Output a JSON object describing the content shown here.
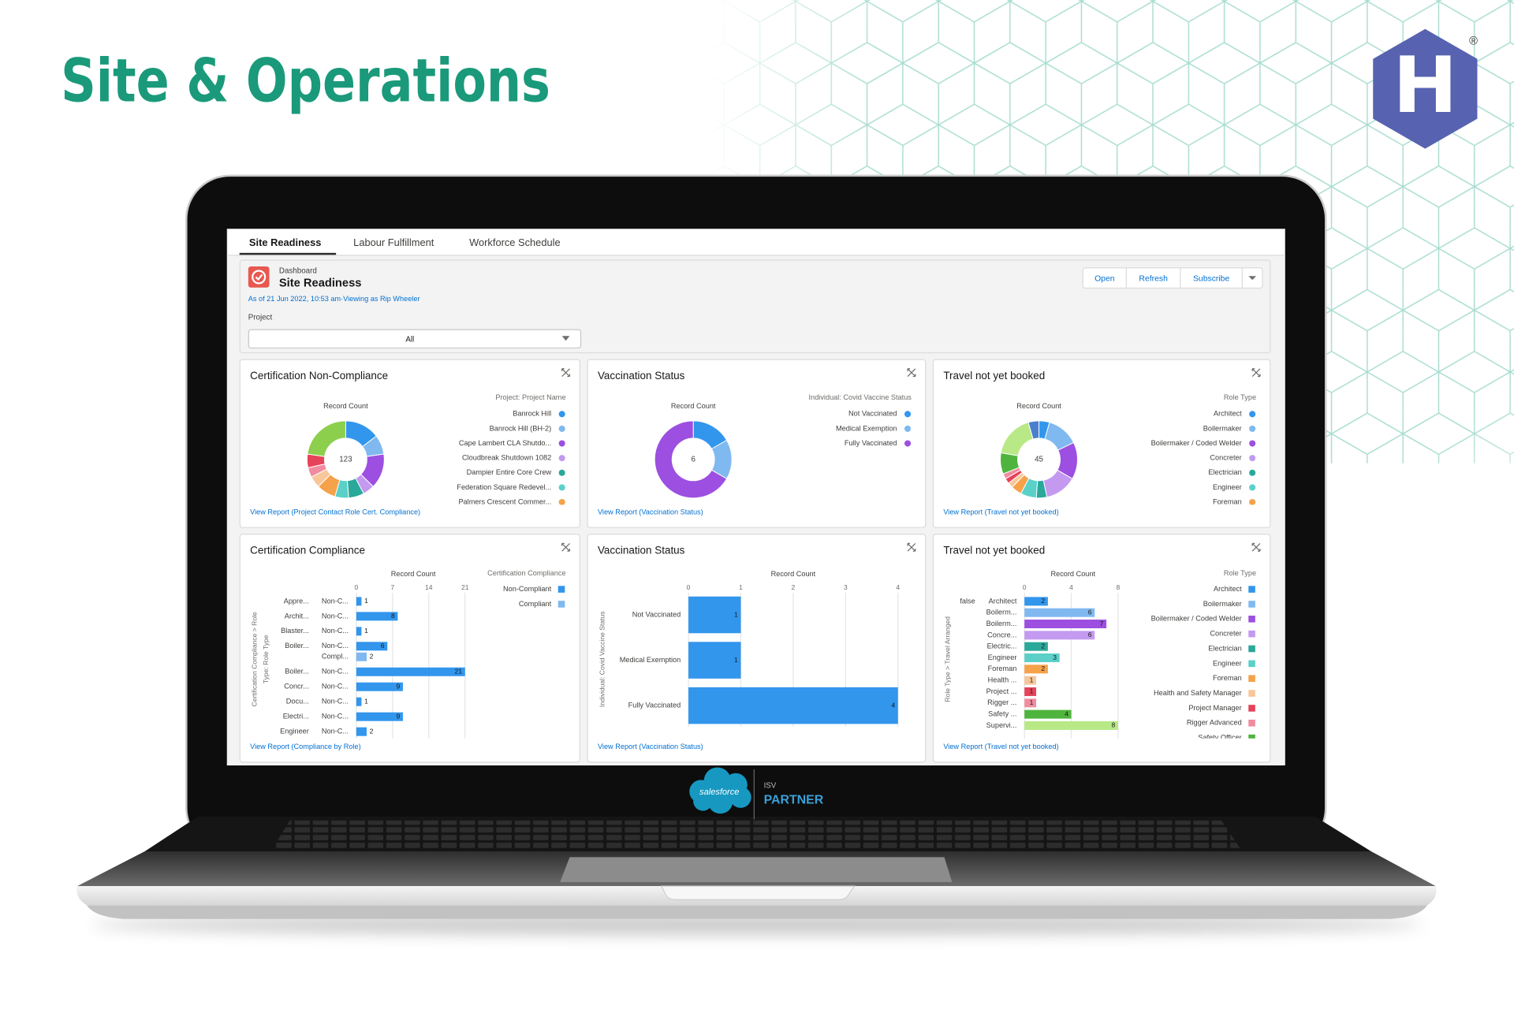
{
  "header": {
    "title": "Site & Operations"
  },
  "logo": {
    "letter": "H",
    "registered": "®"
  },
  "tabs": [
    "Site Readiness",
    "Labour Fulfillment",
    "Workforce Schedule"
  ],
  "dashboard": {
    "label": "Dashboard",
    "title": "Site Readiness",
    "as_of": "As of 21 Jun 2022, 10:53 am·Viewing as Rip Wheeler",
    "buttons": [
      "Open",
      "Refresh",
      "Subscribe"
    ],
    "filter": {
      "label": "Project",
      "value": "All"
    }
  },
  "chart_data": [
    {
      "type": "donut",
      "title": "Certification Non-Compliance",
      "measure_label": "Record Count",
      "total": 123,
      "legend_title": "Project: Project Name",
      "categories": [
        "Banrock Hill",
        "Banrock Hill (BH-2)",
        "Cape Lambert CLA Shutdo...",
        "Cloudbreak Shutdown 1082",
        "Dampier Entire Core Crew",
        "Federation Square Redevel...",
        "Palmers Crescent Commer...",
        null,
        null,
        null,
        null
      ],
      "values": [
        18,
        10,
        18,
        6,
        8,
        7,
        10,
        6,
        5,
        7,
        28
      ],
      "colors": [
        "#3296ed",
        "#7fb9f0",
        "#9c4fe0",
        "#c39af0",
        "#2aa89a",
        "#5ad0c8",
        "#f5a24a",
        "#f7c79a",
        "#f18ca0",
        "#e6435a",
        "#8ccf4d"
      ],
      "link": "View Report (Project Contact Role Cert. Compliance)"
    },
    {
      "type": "donut",
      "title": "Vaccination Status",
      "measure_label": "Record Count",
      "total": 6,
      "legend_title": "Individual: Covid Vaccine Status",
      "categories": [
        "Not Vaccinated",
        "Medical Exemption",
        "Fully Vaccinated"
      ],
      "values": [
        1,
        1,
        4
      ],
      "colors": [
        "#3296ed",
        "#7fb9f0",
        "#9c4fe0"
      ],
      "link": "View Report (Vaccination Status)"
    },
    {
      "type": "donut",
      "title": "Travel not yet booked",
      "measure_label": "Record Count",
      "total": 45,
      "legend_title": "Role Type",
      "categories": [
        "Architect",
        "Boilermaker",
        "Boilermaker / Coded Welder",
        "Concreter",
        "Electrician",
        "Engineer",
        "Foreman",
        null,
        null,
        null,
        null,
        null,
        null
      ],
      "values": [
        2,
        6,
        7,
        6,
        2,
        3,
        2,
        1,
        1,
        1,
        4,
        8,
        2
      ],
      "colors": [
        "#3296ed",
        "#7fb9f0",
        "#9c4fe0",
        "#c39af0",
        "#2aa89a",
        "#5ad0c8",
        "#f5a24a",
        "#f7c79a",
        "#e6435a",
        "#f18ca0",
        "#4fb43d",
        "#b8e986",
        "#4a7fd0"
      ],
      "link": "View Report (Travel not yet booked)"
    },
    {
      "type": "hbar",
      "title": "Certification Compliance",
      "x_label": "Record Count",
      "y_label": [
        "Certification Compliance > Role",
        "Type: Role Type"
      ],
      "legend_title": "Certification Compliance",
      "categories": [
        "Appre...",
        "Archit...",
        "Blaster...",
        "Boiler...",
        null,
        "Boiler...",
        "Concr...",
        "Docu...",
        "Electri...",
        "Engineer"
      ],
      "subcategories": [
        "Non-C...",
        "Non-C...",
        "Non-C...",
        "Non-C...",
        "Compl...",
        "Non-C...",
        "Non-C...",
        "Non-C...",
        "Non-C...",
        "Non-C..."
      ],
      "series": [
        {
          "name": "Non-Compliant",
          "color": "#3296ed",
          "values": [
            1,
            8,
            1,
            6,
            null,
            21,
            9,
            1,
            9,
            2
          ]
        },
        {
          "name": "Compliant",
          "color": "#7fb9f0",
          "values": [
            null,
            null,
            null,
            null,
            2,
            null,
            null,
            null,
            null,
            null
          ]
        }
      ],
      "xlim": [
        0,
        22
      ],
      "xticks": [
        0,
        7,
        14,
        21
      ],
      "link": "View Report (Compliance by Role)"
    },
    {
      "type": "hbar",
      "title": "Vaccination Status",
      "x_label": "Record Count",
      "y_label": [
        "Individual: Covid Vaccine Status"
      ],
      "categories": [
        "Not Vaccinated",
        "Medical Exemption",
        "Fully Vaccinated"
      ],
      "series": [
        {
          "color": "#3296ed",
          "values": [
            1,
            1,
            4
          ]
        }
      ],
      "xlim": [
        0,
        4
      ],
      "xticks": [
        0,
        1,
        2,
        3,
        4
      ],
      "link": "View Report (Vaccination Status)"
    },
    {
      "type": "hbar",
      "title": "Travel not yet booked",
      "x_label": "Record Count",
      "y_label": [
        "Role Type > Travel Arranged"
      ],
      "legend_title": "Role Type",
      "group_labels": [
        "false",
        null,
        null,
        null,
        null,
        null,
        null,
        null,
        null,
        null,
        null,
        null
      ],
      "categories": [
        "Architect",
        "Boilerm...",
        "Boilerm...",
        "Concre...",
        "Electric...",
        "Engineer",
        "Foreman",
        "Health ...",
        "Project ...",
        "Rigger ...",
        "Safety ...",
        "Supervi..."
      ],
      "series": [
        {
          "values": [
            2,
            6,
            7,
            6,
            2,
            3,
            2,
            1,
            1,
            1,
            4,
            8
          ],
          "colors": [
            "#3296ed",
            "#7fb9f0",
            "#9c4fe0",
            "#c39af0",
            "#2aa89a",
            "#5ad0c8",
            "#f5a24a",
            "#f7c79a",
            "#e6435a",
            "#f18ca0",
            "#4fb43d",
            "#b8e986"
          ]
        }
      ],
      "legend": [
        {
          "name": "Architect",
          "color": "#3296ed"
        },
        {
          "name": "Boilermaker",
          "color": "#7fb9f0"
        },
        {
          "name": "Boilermaker / Coded Welder",
          "color": "#9c4fe0"
        },
        {
          "name": "Concreter",
          "color": "#c39af0"
        },
        {
          "name": "Electrician",
          "color": "#2aa89a"
        },
        {
          "name": "Engineer",
          "color": "#5ad0c8"
        },
        {
          "name": "Foreman",
          "color": "#f5a24a"
        },
        {
          "name": "Health and Safety Manager",
          "color": "#f7c79a"
        },
        {
          "name": "Project Manager",
          "color": "#e6435a"
        },
        {
          "name": "Rigger Advanced",
          "color": "#f18ca0"
        },
        {
          "name": "Safety Officer",
          "color": "#4fb43d"
        }
      ],
      "xlim": [
        0,
        8.3
      ],
      "xticks": [
        0,
        4,
        8
      ],
      "link": "View Report (Travel not yet booked)"
    }
  ],
  "footer": {
    "brand": "salesforce",
    "isv": "ISV",
    "partner": "PARTNER"
  }
}
